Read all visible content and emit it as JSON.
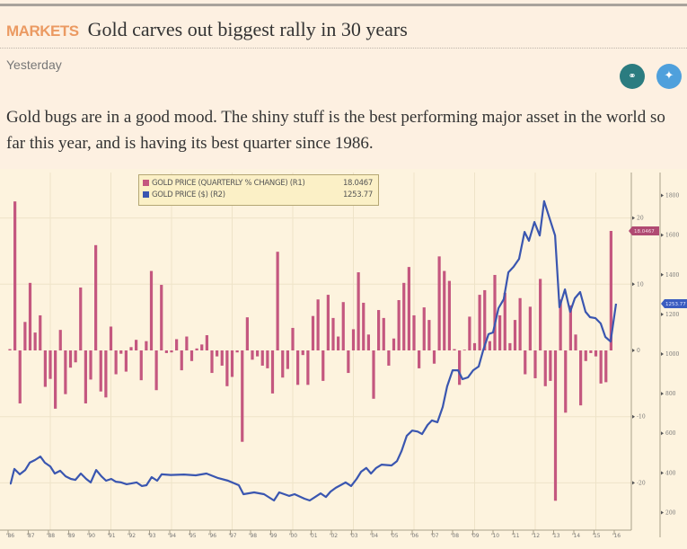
{
  "article": {
    "section": "MARKETS",
    "title": "Gold carves out biggest rally in 30 years",
    "date": "Yesterday",
    "share_icons": [
      "link-icon",
      "twitter-icon"
    ],
    "body": "Gold bugs are in a good mood. The shiny stuff is the best performing major asset in the world so far this year, and is having its best quarter since 1986."
  },
  "colors": {
    "section": "#eb9a62",
    "bars": "#c4577f",
    "line": "#3a56b0",
    "link_icon": "#2b7c80",
    "twitter_icon": "#4fa0dc"
  },
  "chart_data": {
    "type": "bar+line",
    "legend": [
      {
        "label": "GOLD PRICE (QUARTERLY % CHANGE) (R1)",
        "last": "18.0467",
        "color": "#c4577f"
      },
      {
        "label": "GOLD PRICE ($) (R2)",
        "last": "1253.77",
        "color": "#3a56b0"
      }
    ],
    "legend_position": "top-left",
    "last_value_tags": {
      "r1": "18.0467",
      "r2": "1253.77"
    },
    "x_ticks": [
      "'86",
      "'87",
      "'88",
      "'89",
      "'90",
      "'91",
      "'92",
      "'93",
      "'94",
      "'95",
      "'96",
      "'97",
      "'98",
      "'99",
      "'00",
      "'01",
      "'02",
      "'03",
      "'04",
      "'05",
      "'06",
      "'07",
      "'08",
      "'09",
      "'10",
      "'11",
      "'12",
      "'13",
      "'14",
      "'15",
      "'16"
    ],
    "x_range": [
      1986,
      2016
    ],
    "r1_axis": {
      "ticks": [
        "20",
        "10",
        "0",
        "-10",
        "-20"
      ],
      "range": [
        -26,
        27
      ]
    },
    "r2_axis": {
      "ticks": [
        "1800",
        "1600",
        "1400",
        "1200",
        "1000",
        "800",
        "600",
        "400",
        "200"
      ],
      "range": [
        120,
        1900
      ]
    },
    "grid": true,
    "bars_quarterly_pct_change": {
      "start": 1986,
      "frequency": "quarterly",
      "values": [
        0.2,
        22.5,
        -8,
        4.3,
        10.2,
        2.7,
        5.3,
        -5.5,
        -4.3,
        -8.8,
        3.1,
        -6.6,
        -2.6,
        -1.8,
        9.5,
        -8,
        -4.4,
        15.9,
        -6.2,
        -7.1,
        3.6,
        -3.6,
        -0.5,
        -3.2,
        0.5,
        1.6,
        -4.5,
        1.4,
        12,
        -6,
        9.9,
        -0.4,
        -0.3,
        1.7,
        -3,
        2.1,
        -1.6,
        0.3,
        0.9,
        2.3,
        -3.4,
        -0.9,
        -2.3,
        -5.4,
        -4,
        -0.3,
        -13.8,
        5,
        -1.4,
        -0.9,
        -2.3,
        -2.7,
        -6.5,
        14.9,
        -4.1,
        -2.8,
        3.4,
        -5.2,
        -0.7,
        -5.2,
        5.2,
        7.7,
        -4.6,
        8.4,
        4.9,
        2.1,
        7.3,
        -3.4,
        3.2,
        11.8,
        7.2,
        2.4,
        -7.3,
        6.1,
        4.9,
        -2.3,
        1.8,
        7.6,
        10.2,
        12.6,
        5.3,
        -2.7,
        6.5,
        4.6,
        -2,
        14.2,
        12,
        10.5,
        0.2,
        -5.2,
        0.1,
        5.1,
        1.1,
        8.4,
        9.1,
        1.4,
        11.4,
        5.3,
        8.7,
        1.1,
        4.6,
        7.9,
        -3.6,
        6.6,
        -4.2,
        10.8,
        -5.4,
        -4.6,
        -22.7,
        7.7,
        -9.4,
        6.8,
        2.4,
        -8.3,
        -1.6,
        -0.4,
        -0.9,
        -5,
        -4.8,
        18.0467
      ]
    },
    "line_gold_price_usd": [
      [
        1986.0,
        347
      ],
      [
        1986.04,
        347
      ],
      [
        1986.22,
        420
      ],
      [
        1986.49,
        393
      ],
      [
        1986.76,
        415
      ],
      [
        1986.98,
        452
      ],
      [
        1987.24,
        465
      ],
      [
        1987.51,
        483
      ],
      [
        1987.73,
        452
      ],
      [
        1988.0,
        433
      ],
      [
        1988.22,
        397
      ],
      [
        1988.49,
        411
      ],
      [
        1988.76,
        383
      ],
      [
        1989.02,
        370
      ],
      [
        1989.24,
        365
      ],
      [
        1989.51,
        397
      ],
      [
        1989.78,
        370
      ],
      [
        1990.0,
        352
      ],
      [
        1990.27,
        415
      ],
      [
        1990.53,
        383
      ],
      [
        1990.76,
        361
      ],
      [
        1991.02,
        370
      ],
      [
        1991.24,
        356
      ],
      [
        1991.51,
        352
      ],
      [
        1991.78,
        343
      ],
      [
        1992.0,
        347
      ],
      [
        1992.27,
        352
      ],
      [
        1992.53,
        334
      ],
      [
        1992.76,
        338
      ],
      [
        1993.02,
        379
      ],
      [
        1993.29,
        361
      ],
      [
        1993.51,
        393
      ],
      [
        1993.96,
        390
      ],
      [
        1994.62,
        392
      ],
      [
        1995.2,
        388
      ],
      [
        1995.73,
        397
      ],
      [
        1996.31,
        374
      ],
      [
        1996.8,
        361
      ],
      [
        1997.33,
        338
      ],
      [
        1997.56,
        293
      ],
      [
        1998.09,
        302
      ],
      [
        1998.58,
        293
      ],
      [
        1999.07,
        261
      ],
      [
        1999.33,
        302
      ],
      [
        1999.82,
        284
      ],
      [
        2000.09,
        293
      ],
      [
        2000.58,
        270
      ],
      [
        2000.84,
        261
      ],
      [
        2001.11,
        279
      ],
      [
        2001.38,
        297
      ],
      [
        2001.64,
        279
      ],
      [
        2001.87,
        306
      ],
      [
        2002.13,
        325
      ],
      [
        2002.62,
        352
      ],
      [
        2002.89,
        334
      ],
      [
        2003.16,
        370
      ],
      [
        2003.38,
        406
      ],
      [
        2003.64,
        425
      ],
      [
        2003.87,
        397
      ],
      [
        2004.13,
        425
      ],
      [
        2004.4,
        442
      ],
      [
        2004.89,
        438
      ],
      [
        2005.16,
        460
      ],
      [
        2005.38,
        510
      ],
      [
        2005.64,
        587
      ],
      [
        2005.91,
        614
      ],
      [
        2006.18,
        609
      ],
      [
        2006.4,
        596
      ],
      [
        2006.67,
        642
      ],
      [
        2006.89,
        665
      ],
      [
        2007.16,
        656
      ],
      [
        2007.42,
        733
      ],
      [
        2007.64,
        837
      ],
      [
        2007.91,
        918
      ],
      [
        2008.18,
        918
      ],
      [
        2008.4,
        873
      ],
      [
        2008.67,
        882
      ],
      [
        2008.93,
        918
      ],
      [
        2009.2,
        937
      ],
      [
        2009.42,
        1018
      ],
      [
        2009.69,
        1100
      ],
      [
        2009.91,
        1109
      ],
      [
        2010.18,
        1231
      ],
      [
        2010.44,
        1276
      ],
      [
        2010.67,
        1412
      ],
      [
        2010.93,
        1440
      ],
      [
        2011.2,
        1480
      ],
      [
        2011.47,
        1616
      ],
      [
        2011.69,
        1571
      ],
      [
        2011.96,
        1666
      ],
      [
        2012.22,
        1598
      ],
      [
        2012.44,
        1771
      ],
      [
        2012.71,
        1684
      ],
      [
        2012.98,
        1598
      ],
      [
        2013.2,
        1236
      ],
      [
        2013.47,
        1326
      ],
      [
        2013.73,
        1213
      ],
      [
        2013.96,
        1281
      ],
      [
        2014.22,
        1313
      ],
      [
        2014.49,
        1213
      ],
      [
        2014.71,
        1186
      ],
      [
        2014.98,
        1181
      ],
      [
        2015.24,
        1154
      ],
      [
        2015.47,
        1086
      ],
      [
        2015.73,
        1063
      ],
      [
        2016.0,
        1254
      ]
    ]
  }
}
